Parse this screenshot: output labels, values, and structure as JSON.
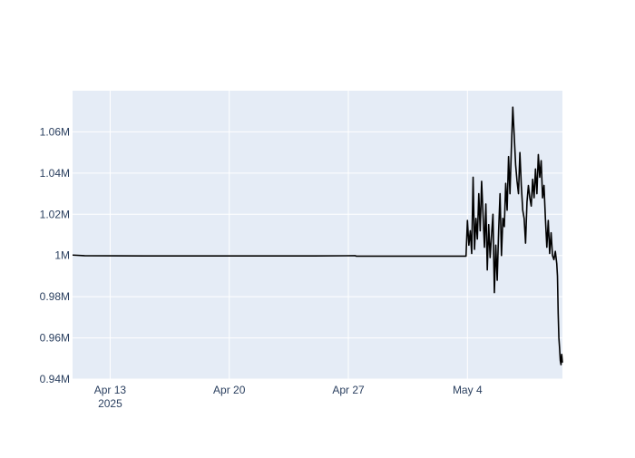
{
  "chart_data": {
    "type": "line",
    "title": "",
    "xlabel": "",
    "ylabel": "",
    "x_axis": {
      "type": "date",
      "range": [
        "2025-04-10T19:00",
        "2025-05-09T14:00"
      ],
      "ticks": [
        {
          "value": "2025-04-13",
          "label": "Apr 13",
          "sublabel": "2025"
        },
        {
          "value": "2025-04-20",
          "label": "Apr 20",
          "sublabel": ""
        },
        {
          "value": "2025-04-27",
          "label": "Apr 27",
          "sublabel": ""
        },
        {
          "value": "2025-05-04",
          "label": "May 4",
          "sublabel": ""
        }
      ]
    },
    "y_axis": {
      "range": [
        940000,
        1080000
      ],
      "ticks": [
        {
          "value": 940000,
          "label": "0.94M"
        },
        {
          "value": 960000,
          "label": "0.96M"
        },
        {
          "value": 980000,
          "label": "0.98M"
        },
        {
          "value": 1000000,
          "label": "1M"
        },
        {
          "value": 1020000,
          "label": "1.02M"
        },
        {
          "value": 1040000,
          "label": "1.04M"
        },
        {
          "value": 1060000,
          "label": "1.06M"
        }
      ]
    },
    "grid": true,
    "colors": {
      "line": "#000000",
      "plot_bg": "#e5ecf6",
      "grid": "#ffffff",
      "tick_text": "#2a3f5f"
    },
    "series": [
      {
        "name": "",
        "x": [
          "2025-04-10T19:00",
          "2025-04-11T12:00",
          "2025-04-15T00:00",
          "2025-04-20T00:00",
          "2025-04-25T00:00",
          "2025-04-27T10:00",
          "2025-04-27T11:00",
          "2025-05-01T00:00",
          "2025-05-03T22:00",
          "2025-05-04T00:00",
          "2025-05-04T02:00",
          "2025-05-04T04:00",
          "2025-05-04T06:00",
          "2025-05-04T08:00",
          "2025-05-04T10:00",
          "2025-05-04T12:00",
          "2025-05-04T14:00",
          "2025-05-04T16:00",
          "2025-05-04T18:00",
          "2025-05-04T20:00",
          "2025-05-04T22:00",
          "2025-05-05T00:00",
          "2025-05-05T02:00",
          "2025-05-05T04:00",
          "2025-05-05T06:00",
          "2025-05-05T08:00",
          "2025-05-05T10:00",
          "2025-05-05T12:00",
          "2025-05-05T14:00",
          "2025-05-05T16:00",
          "2025-05-05T18:00",
          "2025-05-05T20:00",
          "2025-05-05T22:00",
          "2025-05-06T00:00",
          "2025-05-06T02:00",
          "2025-05-06T04:00",
          "2025-05-06T06:00",
          "2025-05-06T08:00",
          "2025-05-06T10:00",
          "2025-05-06T12:00",
          "2025-05-06T14:00",
          "2025-05-06T16:00",
          "2025-05-06T18:00",
          "2025-05-06T20:00",
          "2025-05-06T22:00",
          "2025-05-07T00:00",
          "2025-05-07T02:00",
          "2025-05-07T04:00",
          "2025-05-07T06:00",
          "2025-05-07T08:00",
          "2025-05-07T10:00",
          "2025-05-07T12:00",
          "2025-05-07T14:00",
          "2025-05-07T16:00",
          "2025-05-07T18:00",
          "2025-05-07T20:00",
          "2025-05-07T22:00",
          "2025-05-08T00:00",
          "2025-05-08T02:00",
          "2025-05-08T04:00",
          "2025-05-08T06:00",
          "2025-05-08T08:00",
          "2025-05-08T10:00",
          "2025-05-08T12:00",
          "2025-05-08T14:00",
          "2025-05-08T16:00",
          "2025-05-08T18:00",
          "2025-05-08T20:00",
          "2025-05-08T22:00",
          "2025-05-09T00:00",
          "2025-05-09T02:00",
          "2025-05-09T04:00",
          "2025-05-09T06:00",
          "2025-05-09T07:00",
          "2025-05-09T08:00",
          "2025-05-09T09:00",
          "2025-05-09T10:00",
          "2025-05-09T11:00",
          "2025-05-09T12:00",
          "2025-05-09T13:00",
          "2025-05-09T14:00"
        ],
        "y": [
          1000200,
          999900,
          999800,
          999800,
          999800,
          999900,
          999700,
          999700,
          999700,
          1017000,
          1005000,
          1012000,
          1001000,
          1038000,
          1003000,
          1018000,
          1008000,
          1030000,
          1012000,
          1036000,
          1020000,
          1004000,
          1025000,
          993000,
          1015000,
          999000,
          1010000,
          1020000,
          982000,
          1005000,
          988000,
          1012000,
          1030000,
          1000000,
          1018000,
          1014000,
          1035000,
          1022000,
          1048000,
          1030000,
          1052000,
          1072000,
          1058000,
          1044000,
          1036000,
          1030000,
          1050000,
          1034000,
          1022000,
          1018000,
          1006000,
          1026000,
          1034000,
          1028000,
          1024000,
          1037000,
          1028000,
          1042000,
          1030000,
          1049000,
          1038000,
          1046000,
          1028000,
          1034000,
          1018000,
          1004000,
          1017000,
          1001000,
          1011000,
          1000000,
          998000,
          1002000,
          996000,
          990000,
          972000,
          960000,
          955000,
          949000,
          947000,
          952000,
          948000
        ]
      }
    ]
  }
}
